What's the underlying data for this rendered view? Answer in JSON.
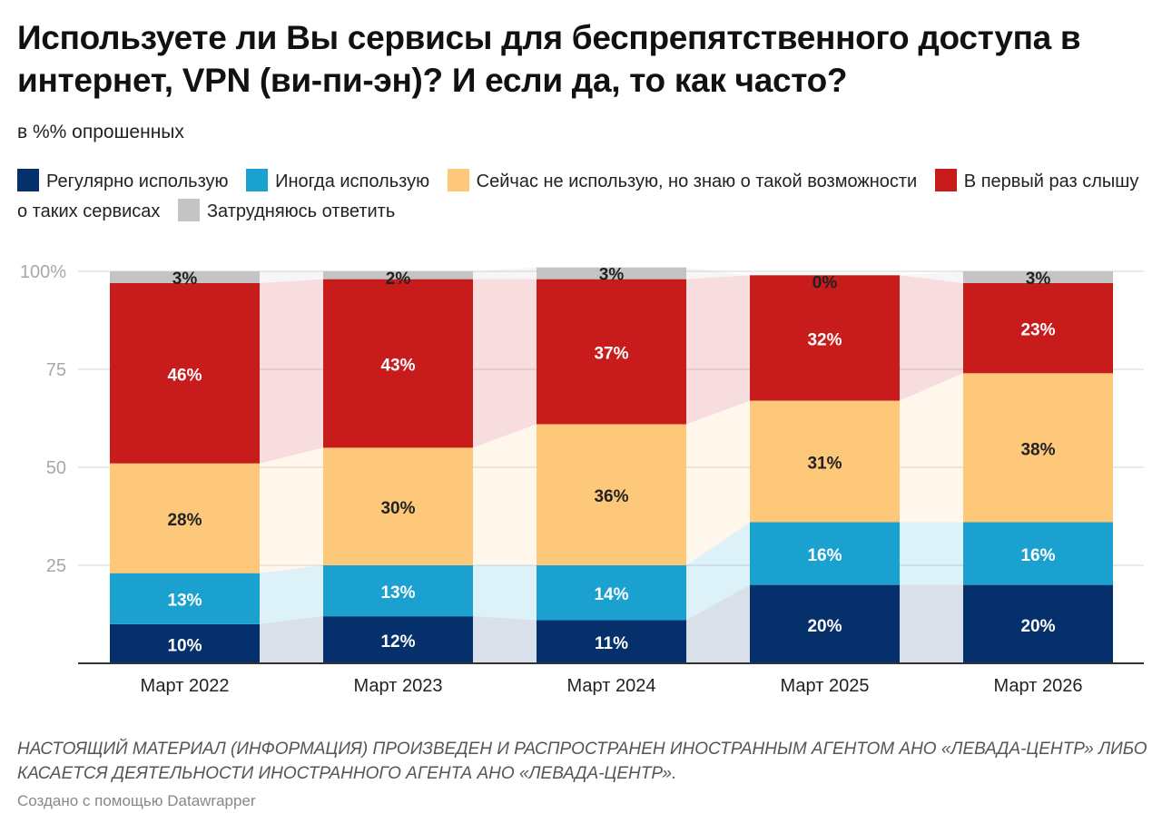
{
  "header": {
    "title": "Используете ли Вы сервисы для беспрепятственного доступа в интернет, VPN (ви-пи-эн)? И если да, то как часто?",
    "subtitle": "в %% опрошенных"
  },
  "legend": [
    {
      "label": "Регулярно использую",
      "color": "#05306b"
    },
    {
      "label": "Иногда использую",
      "color": "#1ba1cf"
    },
    {
      "label": "Сейчас не использую, но знаю о такой возможности",
      "color": "#fec87a"
    },
    {
      "label": "В первый раз слышу о таких сервисах",
      "color": "#c81b1b"
    },
    {
      "label": "Затрудняюсь ответить",
      "color": "#c4c4c4"
    }
  ],
  "chart_data": {
    "type": "bar",
    "stacked": true,
    "title": "Используете ли Вы сервисы для беспрепятственного доступа в интернет, VPN (ви-пи-эн)? И если да, то как часто?",
    "subtitle": "в %% опрошенных",
    "xlabel": "",
    "ylabel": "",
    "ylim": [
      0,
      100
    ],
    "yticks": [
      25,
      50,
      75,
      100
    ],
    "ytick_labels": [
      "25",
      "50",
      "75",
      "100%"
    ],
    "grid": true,
    "legend_position": "top",
    "categories": [
      "Март 2022",
      "Март 2023",
      "Март 2024",
      "Март 2025",
      "Март 2026"
    ],
    "series": [
      {
        "name": "Регулярно использую",
        "color": "#05306b",
        "label_color": "#ffffff",
        "values": [
          10,
          12,
          11,
          20,
          20
        ]
      },
      {
        "name": "Иногда использую",
        "color": "#1ba1cf",
        "label_color": "#ffffff",
        "values": [
          13,
          13,
          14,
          16,
          16
        ]
      },
      {
        "name": "Сейчас не использую, но знаю о такой возможности",
        "color": "#fec87a",
        "label_color": "#222222",
        "values": [
          28,
          30,
          36,
          31,
          38
        ]
      },
      {
        "name": "В первый раз слышу о таких сервисах",
        "color": "#c81b1b",
        "label_color": "#ffffff",
        "values": [
          46,
          43,
          37,
          32,
          23
        ]
      },
      {
        "name": "Затрудняюсь ответить",
        "color": "#c4c4c4",
        "label_color": "#222222",
        "values": [
          3,
          2,
          3,
          0,
          3
        ]
      }
    ],
    "value_suffix": "%"
  },
  "footer": {
    "note": "НАСТОЯЩИЙ МАТЕРИАЛ (ИНФОРМАЦИЯ) ПРОИЗВЕДЕН И РАСПРОСТРАНЕН ИНОСТРАННЫМ АГЕНТОМ АНО «ЛЕВАДА-ЦЕНТР» ЛИБО КАСАЕТСЯ ДЕЯТЕЛЬНОСТИ ИНОСТРАННОГО АГЕНТА АНО «ЛЕВАДА-ЦЕНТР».",
    "credit": "Создано с помощью Datawrapper"
  }
}
